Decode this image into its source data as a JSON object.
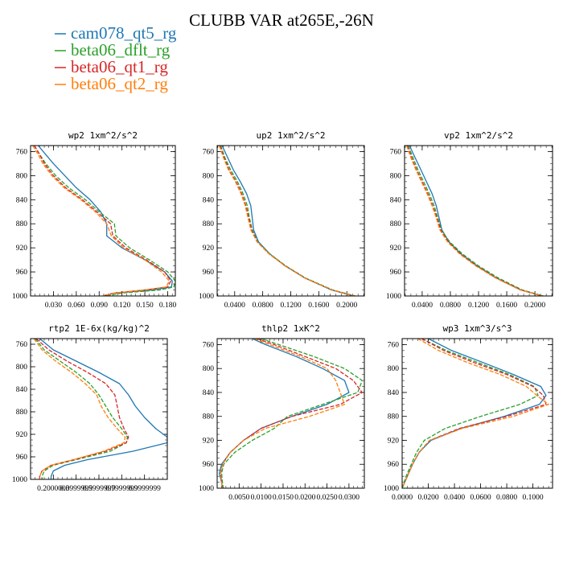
{
  "figure_title": "CLUBB VAR at265E,-26N",
  "colors": {
    "cam078_qt5_rg": "#1f77b4",
    "beta06_dflt_rg": "#2ca02c",
    "beta06_qt1_rg": "#d62728",
    "beta06_qt2_rg": "#ff7f0e"
  },
  "legend": [
    {
      "name": "cam078_qt5_rg",
      "color": "#1f77b4",
      "dash": "solid"
    },
    {
      "name": "beta06_dflt_rg",
      "color": "#2ca02c",
      "dash": "dashed"
    },
    {
      "name": "beta06_qt1_rg",
      "color": "#d62728",
      "dash": "dashed"
    },
    {
      "name": "beta06_qt2_rg",
      "color": "#ff7f0e",
      "dash": "dashed"
    }
  ],
  "chart_data": [
    {
      "type": "line",
      "title": "wp2  1xm^2/s^2",
      "ylim": [
        1000,
        750
      ],
      "yticks": [
        760,
        800,
        840,
        880,
        920,
        960,
        1000
      ],
      "xlim": [
        0,
        0.19
      ],
      "xticks": [
        0.03,
        0.06,
        0.09,
        0.12,
        0.15,
        0.18
      ],
      "xticklabels": [
        "0.030",
        "0.060",
        "0.090",
        "0.120",
        "0.150",
        "0.180"
      ],
      "y": [
        750,
        765,
        780,
        800,
        820,
        840,
        860,
        880,
        900,
        920,
        940,
        960,
        975,
        985,
        990,
        995,
        1000
      ],
      "series": [
        {
          "name": "cam078_qt5_rg",
          "values": [
            0.01,
            0.02,
            0.03,
            0.045,
            0.06,
            0.078,
            0.092,
            0.1,
            0.1,
            0.12,
            0.15,
            0.176,
            0.186,
            0.185,
            0.16,
            0.11,
            0.095
          ]
        },
        {
          "name": "beta06_dflt_rg",
          "values": [
            0.005,
            0.012,
            0.02,
            0.033,
            0.05,
            0.072,
            0.09,
            0.11,
            0.112,
            0.13,
            0.156,
            0.18,
            0.19,
            0.188,
            0.17,
            0.12,
            0.1
          ]
        },
        {
          "name": "beta06_qt1_rg",
          "values": [
            0.005,
            0.012,
            0.018,
            0.03,
            0.046,
            0.068,
            0.087,
            0.105,
            0.108,
            0.125,
            0.152,
            0.176,
            0.184,
            0.18,
            0.15,
            0.11,
            0.095
          ]
        },
        {
          "name": "beta06_qt2_rg",
          "values": [
            0.003,
            0.01,
            0.016,
            0.028,
            0.044,
            0.066,
            0.085,
            0.1,
            0.106,
            0.122,
            0.15,
            0.172,
            0.182,
            0.178,
            0.15,
            0.11,
            0.095
          ]
        }
      ]
    },
    {
      "type": "line",
      "title": "up2  1xm^2/s^2",
      "ylim": [
        1000,
        750
      ],
      "yticks": [
        760,
        800,
        840,
        880,
        920,
        960,
        1000
      ],
      "xlim": [
        0.015,
        0.225
      ],
      "xticks": [
        0.04,
        0.08,
        0.12,
        0.16,
        0.2
      ],
      "xticklabels": [
        "0.0400",
        "0.0800",
        "0.1200",
        "0.1600",
        "0.2000"
      ],
      "y": [
        750,
        770,
        790,
        810,
        830,
        850,
        870,
        890,
        910,
        930,
        950,
        970,
        990,
        1000
      ],
      "series": [
        {
          "name": "cam078_qt5_rg",
          "values": [
            0.022,
            0.03,
            0.038,
            0.048,
            0.057,
            0.063,
            0.065,
            0.067,
            0.074,
            0.09,
            0.112,
            0.14,
            0.178,
            0.21
          ]
        },
        {
          "name": "beta06_dflt_rg",
          "values": [
            0.02,
            0.026,
            0.034,
            0.044,
            0.052,
            0.058,
            0.061,
            0.065,
            0.073,
            0.09,
            0.113,
            0.141,
            0.18,
            0.212
          ]
        },
        {
          "name": "beta06_qt1_rg",
          "values": [
            0.019,
            0.025,
            0.032,
            0.042,
            0.05,
            0.056,
            0.06,
            0.064,
            0.072,
            0.089,
            0.112,
            0.14,
            0.179,
            0.211
          ]
        },
        {
          "name": "beta06_qt2_rg",
          "values": [
            0.018,
            0.024,
            0.031,
            0.041,
            0.049,
            0.055,
            0.059,
            0.063,
            0.072,
            0.089,
            0.112,
            0.14,
            0.179,
            0.211
          ]
        }
      ]
    },
    {
      "type": "line",
      "title": "vp2  1xm^2/s^2",
      "ylim": [
        1000,
        750
      ],
      "yticks": [
        760,
        800,
        840,
        880,
        920,
        960,
        1000
      ],
      "xlim": [
        0.015,
        0.225
      ],
      "xticks": [
        0.04,
        0.08,
        0.12,
        0.16,
        0.2
      ],
      "xticklabels": [
        "0.0400",
        "0.0800",
        "0.1200",
        "0.1600",
        "0.2000"
      ],
      "y": [
        750,
        770,
        790,
        810,
        830,
        850,
        870,
        890,
        910,
        930,
        950,
        970,
        990,
        1000
      ],
      "series": [
        {
          "name": "cam078_qt5_rg",
          "values": [
            0.022,
            0.03,
            0.038,
            0.046,
            0.054,
            0.06,
            0.064,
            0.068,
            0.078,
            0.095,
            0.118,
            0.145,
            0.18,
            0.21
          ]
        },
        {
          "name": "beta06_dflt_rg",
          "values": [
            0.02,
            0.027,
            0.034,
            0.042,
            0.05,
            0.057,
            0.062,
            0.067,
            0.079,
            0.097,
            0.12,
            0.148,
            0.182,
            0.212
          ]
        },
        {
          "name": "beta06_qt1_rg",
          "values": [
            0.019,
            0.025,
            0.032,
            0.04,
            0.048,
            0.055,
            0.061,
            0.066,
            0.077,
            0.094,
            0.117,
            0.145,
            0.18,
            0.211
          ]
        },
        {
          "name": "beta06_qt2_rg",
          "values": [
            0.018,
            0.024,
            0.031,
            0.039,
            0.047,
            0.054,
            0.06,
            0.065,
            0.076,
            0.093,
            0.116,
            0.144,
            0.179,
            0.21
          ]
        }
      ]
    },
    {
      "type": "line",
      "title": "rtp2  1E-6x(kg/kg)^2",
      "ylim": [
        1000,
        750
      ],
      "yticks": [
        760,
        800,
        840,
        880,
        920,
        960,
        1000
      ],
      "xlim": [
        0.0,
        1.2
      ],
      "xticks": [
        0.2,
        0.4,
        0.6,
        0.8,
        1.0
      ],
      "xticklabels": [
        "0.2000000",
        "0.3999999",
        "0.5999999",
        "0.7999999",
        "0.9999999"
      ],
      "y": [
        750,
        770,
        790,
        810,
        830,
        850,
        870,
        890,
        910,
        925,
        935,
        950,
        965,
        975,
        985,
        995,
        1000
      ],
      "series": [
        {
          "name": "cam078_qt5_rg",
          "values": [
            0.08,
            0.2,
            0.4,
            0.6,
            0.78,
            0.86,
            0.92,
            1.0,
            1.1,
            1.2,
            1.2,
            0.9,
            0.5,
            0.3,
            0.2,
            0.18,
            0.18
          ]
        },
        {
          "name": "beta06_dflt_rg",
          "values": [
            0.04,
            0.12,
            0.26,
            0.4,
            0.52,
            0.6,
            0.66,
            0.72,
            0.8,
            0.85,
            0.84,
            0.7,
            0.4,
            0.2,
            0.12,
            0.1,
            0.1
          ]
        },
        {
          "name": "beta06_qt1_rg",
          "values": [
            0.05,
            0.16,
            0.32,
            0.5,
            0.66,
            0.74,
            0.76,
            0.78,
            0.82,
            0.86,
            0.84,
            0.66,
            0.38,
            0.18,
            0.1,
            0.08,
            0.08
          ]
        },
        {
          "name": "beta06_qt2_rg",
          "values": [
            0.03,
            0.1,
            0.22,
            0.36,
            0.48,
            0.58,
            0.62,
            0.68,
            0.76,
            0.83,
            0.82,
            0.64,
            0.38,
            0.18,
            0.1,
            0.08,
            0.08
          ]
        }
      ]
    },
    {
      "type": "line",
      "title": "thlp2  1xK^2",
      "ylim": [
        1000,
        750
      ],
      "yticks": [
        760,
        800,
        840,
        880,
        920,
        960,
        1000
      ],
      "xlim": [
        0.0,
        0.0335
      ],
      "xticks": [
        0.005,
        0.01,
        0.015,
        0.02,
        0.025,
        0.03
      ],
      "xticklabels": [
        "0.0050",
        "0.0100",
        "0.0150",
        "0.0200",
        "0.0250",
        "0.0300"
      ],
      "y": [
        750,
        760,
        780,
        800,
        820,
        840,
        860,
        880,
        900,
        920,
        940,
        960,
        975,
        990,
        1000
      ],
      "series": [
        {
          "name": "cam078_qt5_rg",
          "values": [
            0.008,
            0.011,
            0.018,
            0.024,
            0.029,
            0.03,
            0.025,
            0.017,
            0.01,
            0.006,
            0.003,
            0.001,
            0.0005,
            0.001,
            0.0012
          ]
        },
        {
          "name": "beta06_dflt_rg",
          "values": [
            0.01,
            0.014,
            0.022,
            0.029,
            0.033,
            0.032,
            0.024,
            0.016,
            0.013,
            0.008,
            0.004,
            0.0015,
            0.001,
            0.0012,
            0.0014
          ]
        },
        {
          "name": "beta06_qt1_rg",
          "values": [
            0.009,
            0.013,
            0.02,
            0.027,
            0.031,
            0.033,
            0.028,
            0.017,
            0.01,
            0.006,
            0.003,
            0.0012,
            0.0008,
            0.001,
            0.0012
          ]
        },
        {
          "name": "beta06_qt2_rg",
          "values": [
            0.0085,
            0.012,
            0.019,
            0.025,
            0.027,
            0.028,
            0.029,
            0.021,
            0.011,
            0.006,
            0.003,
            0.0012,
            0.0008,
            0.001,
            0.0012
          ]
        }
      ]
    },
    {
      "type": "line",
      "title": "wp3  1xm^3/s^3",
      "ylim": [
        1000,
        750
      ],
      "yticks": [
        760,
        800,
        840,
        880,
        920,
        960,
        1000
      ],
      "xlim": [
        0.0,
        0.115
      ],
      "xticks": [
        0.0,
        0.02,
        0.04,
        0.06,
        0.08,
        0.1
      ],
      "xticklabels": [
        "0.0000",
        "0.0200",
        "0.0400",
        "0.0600",
        "0.0800",
        "0.1000"
      ],
      "y": [
        750,
        770,
        790,
        810,
        830,
        845,
        860,
        880,
        900,
        920,
        940,
        960,
        980,
        1000
      ],
      "series": [
        {
          "name": "cam078_qt5_rg",
          "values": [
            0.02,
            0.038,
            0.062,
            0.085,
            0.106,
            0.11,
            0.105,
            0.078,
            0.045,
            0.022,
            0.013,
            0.008,
            0.004,
            0.0
          ]
        },
        {
          "name": "beta06_dflt_rg",
          "values": [
            0.015,
            0.034,
            0.058,
            0.082,
            0.101,
            0.104,
            0.09,
            0.06,
            0.033,
            0.017,
            0.011,
            0.007,
            0.003,
            0.0
          ]
        },
        {
          "name": "beta06_qt1_rg",
          "values": [
            0.015,
            0.032,
            0.055,
            0.08,
            0.1,
            0.108,
            0.11,
            0.08,
            0.044,
            0.021,
            0.013,
            0.008,
            0.004,
            0.0
          ]
        },
        {
          "name": "beta06_qt2_rg",
          "values": [
            0.012,
            0.028,
            0.05,
            0.075,
            0.095,
            0.103,
            0.112,
            0.085,
            0.046,
            0.021,
            0.013,
            0.008,
            0.004,
            0.0
          ]
        }
      ]
    }
  ]
}
